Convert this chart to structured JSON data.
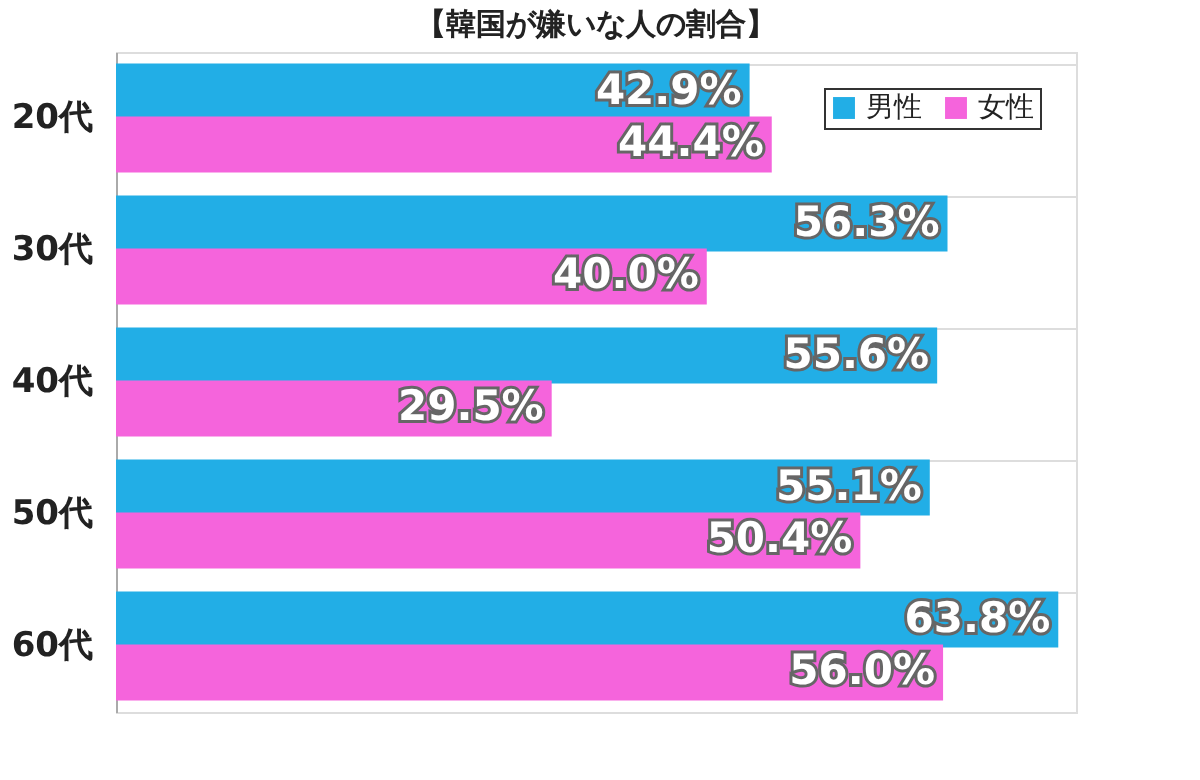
{
  "chart_data": {
    "type": "bar",
    "orientation": "horizontal",
    "title": "【韓国が嫌いな人の割合】",
    "categories": [
      "20代",
      "30代",
      "40代",
      "50代",
      "60代"
    ],
    "series": [
      {
        "name": "男性",
        "color": "#22aee6",
        "values": [
          42.9,
          56.3,
          55.6,
          55.1,
          63.8
        ],
        "value_labels": [
          "42.9%",
          "56.3%",
          "55.6%",
          "55.1%",
          "63.8%"
        ]
      },
      {
        "name": "女性",
        "color": "#f564dc",
        "values": [
          44.4,
          40.0,
          29.5,
          50.4,
          56.0
        ],
        "value_labels": [
          "44.4%",
          "40.0%",
          "29.5%",
          "50.4%",
          "56.0%"
        ]
      }
    ],
    "xlim": [
      0,
      65
    ],
    "tick_labels": "y",
    "grid": "y",
    "legend": "top right"
  }
}
